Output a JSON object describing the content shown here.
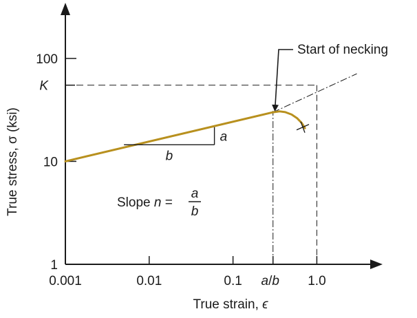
{
  "chart_data": {
    "type": "line",
    "xlabel_prefix": "True strain, ",
    "xlabel_symbol": "ϵ",
    "ylabel": "True stress, σ (ksi)",
    "x_scale": "log",
    "y_scale": "log",
    "xlim": [
      0.001,
      4.5
    ],
    "ylim": [
      1,
      280
    ],
    "x_ticks": [
      {
        "value": 0.001,
        "label": "0.001"
      },
      {
        "value": 0.01,
        "label": "0.01"
      },
      {
        "value": 0.1,
        "label": "0.1"
      },
      {
        "value": 1.0,
        "label": "1.0"
      }
    ],
    "y_ticks": [
      {
        "value": 1,
        "label": "1"
      },
      {
        "value": 10,
        "label": "10"
      },
      {
        "value": 100,
        "label": "100"
      }
    ],
    "x_marker": {
      "value": 0.3,
      "label_a": "a",
      "label_sep": "/",
      "label_b": "b"
    },
    "y_marker": {
      "value": 55,
      "label": "K"
    },
    "series": [
      {
        "role": "flow-curve",
        "color": "#b8901e",
        "x": [
          0.001,
          0.3
        ],
        "y": [
          10,
          30
        ]
      },
      {
        "role": "necking-curve",
        "color": "#b8901e",
        "x": [
          0.3,
          0.36,
          0.42,
          0.5,
          0.58,
          0.66,
          0.72
        ],
        "y": [
          30,
          30.6,
          30.1,
          28.5,
          26.3,
          23.6,
          21
        ]
      },
      {
        "role": "extrapolation",
        "style": "dash-dot",
        "x": [
          0.3,
          3.0
        ],
        "y": [
          30,
          71
        ]
      }
    ],
    "fracture_point": {
      "x": 0.68,
      "y": 21.5
    },
    "slope_triangle": {
      "x1": 0.005,
      "x2": 0.06,
      "y_low": 14.5,
      "y_high": 21.5,
      "label_a": "a",
      "label_b": "b"
    },
    "annotations": {
      "necking": "Start of necking",
      "slope_prefix": "Slope ",
      "slope_n": "n",
      "slope_eq": " = ",
      "slope_num": "a",
      "slope_den": "b"
    }
  }
}
